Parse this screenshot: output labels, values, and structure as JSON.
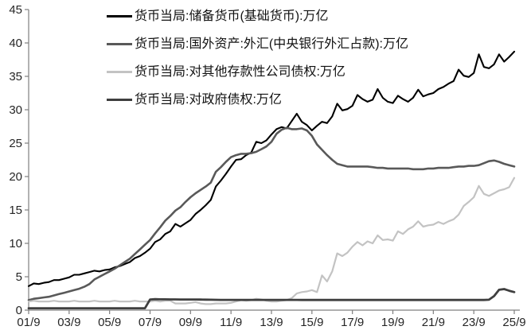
{
  "chart_data": {
    "type": "line",
    "title": "",
    "xlabel": "",
    "ylabel": "",
    "unit": "万亿",
    "x_start": "2001/9",
    "x_end": "2025/9",
    "points_per_year": 4,
    "grid": false,
    "legend_position": "top-left-inside",
    "axis_color": "#7f7f7f",
    "label_color": "#262626",
    "ylim": [
      0,
      45
    ],
    "y_ticks": [
      0,
      5,
      10,
      15,
      20,
      25,
      30,
      35,
      40,
      45
    ],
    "x_tick_labels": [
      "01/9",
      "03/9",
      "05/9",
      "07/9",
      "09/9",
      "11/9",
      "13/9",
      "15/9",
      "17/9",
      "19/9",
      "21/9",
      "23/9",
      "25/9"
    ],
    "series": [
      {
        "name": "货币当局:储备货币(基础货币):万亿",
        "color": "#000000",
        "width": 2.1,
        "values": [
          3.6,
          4.0,
          3.9,
          4.1,
          4.2,
          4.5,
          4.5,
          4.7,
          4.9,
          5.3,
          5.3,
          5.5,
          5.7,
          5.9,
          5.8,
          6.0,
          6.1,
          6.4,
          6.6,
          6.9,
          7.2,
          7.8,
          8.1,
          8.6,
          9.2,
          10.2,
          10.6,
          11.4,
          11.8,
          12.9,
          12.5,
          13.0,
          13.5,
          14.4,
          15.0,
          15.7,
          16.5,
          18.5,
          19.4,
          20.4,
          21.5,
          22.5,
          22.6,
          23.2,
          23.6,
          25.2,
          25.0,
          25.4,
          26.3,
          27.1,
          27.4,
          27.2,
          28.3,
          29.4,
          28.2,
          27.7,
          26.9,
          27.6,
          28.2,
          28.0,
          29.0,
          30.9,
          29.9,
          30.1,
          30.6,
          32.2,
          31.6,
          31.2,
          31.5,
          33.1,
          31.8,
          31.2,
          31.0,
          32.1,
          31.6,
          31.2,
          31.8,
          33.0,
          32.0,
          32.3,
          32.5,
          33.1,
          33.4,
          33.9,
          34.3,
          36.0,
          35.1,
          34.9,
          35.5,
          38.3,
          36.4,
          36.2,
          36.8,
          38.3,
          37.2,
          37.9,
          38.7
        ]
      },
      {
        "name": "货币当局:国外资产:外汇(中央银行外汇占款):万亿",
        "color": "#595959",
        "width": 2.6,
        "values": [
          1.5,
          1.7,
          1.8,
          1.9,
          2.0,
          2.2,
          2.4,
          2.6,
          2.8,
          3.0,
          3.2,
          3.5,
          3.9,
          4.6,
          5.0,
          5.4,
          5.8,
          6.2,
          6.7,
          7.2,
          7.7,
          8.4,
          9.1,
          9.8,
          10.5,
          11.5,
          12.4,
          13.4,
          14.1,
          14.9,
          15.4,
          16.2,
          16.9,
          17.5,
          18.0,
          18.5,
          19.1,
          20.7,
          21.4,
          22.2,
          22.9,
          23.2,
          23.4,
          23.4,
          23.5,
          23.7,
          24.1,
          24.5,
          25.2,
          26.4,
          27.0,
          27.3,
          27.1,
          27.1,
          27.2,
          26.9,
          26.1,
          24.8,
          24.0,
          23.2,
          22.5,
          21.9,
          21.7,
          21.5,
          21.5,
          21.5,
          21.5,
          21.5,
          21.4,
          21.3,
          21.3,
          21.2,
          21.2,
          21.2,
          21.2,
          21.2,
          21.1,
          21.1,
          21.1,
          21.2,
          21.2,
          21.3,
          21.3,
          21.3,
          21.4,
          21.5,
          21.5,
          21.6,
          21.6,
          21.7,
          22.0,
          22.3,
          22.4,
          22.2,
          21.9,
          21.7,
          21.5
        ]
      },
      {
        "name": "货币当局:对其他存款性公司债权:万亿",
        "color": "#c3c3c3",
        "width": 2.2,
        "values": [
          1.3,
          1.4,
          1.3,
          1.3,
          1.3,
          1.4,
          1.3,
          1.3,
          1.3,
          1.4,
          1.3,
          1.3,
          1.3,
          1.4,
          1.3,
          1.3,
          1.3,
          1.4,
          1.3,
          1.3,
          1.3,
          1.4,
          1.3,
          1.3,
          1.3,
          1.4,
          1.3,
          1.4,
          1.4,
          1.0,
          1.0,
          1.0,
          1.1,
          1.2,
          1.0,
          0.9,
          0.9,
          1.0,
          1.0,
          1.0,
          1.1,
          1.3,
          1.5,
          1.4,
          1.5,
          1.7,
          1.6,
          1.4,
          1.3,
          1.3,
          1.4,
          1.5,
          1.8,
          2.5,
          2.7,
          2.8,
          3.0,
          2.7,
          5.2,
          4.3,
          5.8,
          8.5,
          8.1,
          8.6,
          9.5,
          10.2,
          9.7,
          10.3,
          10.0,
          11.2,
          10.5,
          10.6,
          10.4,
          11.8,
          11.4,
          12.1,
          12.5,
          13.3,
          12.5,
          12.7,
          12.8,
          13.2,
          12.9,
          13.3,
          13.6,
          14.3,
          15.6,
          16.2,
          16.9,
          18.6,
          17.4,
          17.1,
          17.5,
          17.9,
          18.1,
          18.4,
          19.8
        ]
      },
      {
        "name": "货币当局:对政府债权:万亿",
        "color": "#3f3f3f",
        "width": 2.8,
        "values": [
          0.28,
          0.28,
          0.29,
          0.29,
          0.29,
          0.29,
          0.29,
          0.29,
          0.29,
          0.29,
          0.29,
          0.29,
          0.29,
          0.29,
          0.29,
          0.29,
          0.29,
          0.29,
          0.29,
          0.29,
          0.29,
          0.29,
          0.29,
          0.29,
          1.6,
          1.64,
          1.62,
          1.62,
          1.61,
          1.61,
          1.6,
          1.6,
          1.59,
          1.59,
          1.58,
          1.57,
          1.56,
          1.55,
          1.54,
          1.54,
          1.54,
          1.54,
          1.53,
          1.53,
          1.53,
          1.53,
          1.53,
          1.53,
          1.53,
          1.53,
          1.53,
          1.53,
          1.53,
          1.53,
          1.52,
          1.52,
          1.52,
          1.52,
          1.52,
          1.52,
          1.52,
          1.52,
          1.52,
          1.52,
          1.52,
          1.52,
          1.52,
          1.52,
          1.52,
          1.52,
          1.52,
          1.52,
          1.52,
          1.52,
          1.52,
          1.52,
          1.52,
          1.52,
          1.52,
          1.52,
          1.52,
          1.52,
          1.52,
          1.52,
          1.52,
          1.52,
          1.52,
          1.52,
          1.52,
          1.52,
          1.52,
          1.56,
          2.1,
          3.05,
          3.15,
          2.9,
          2.7
        ]
      }
    ]
  }
}
